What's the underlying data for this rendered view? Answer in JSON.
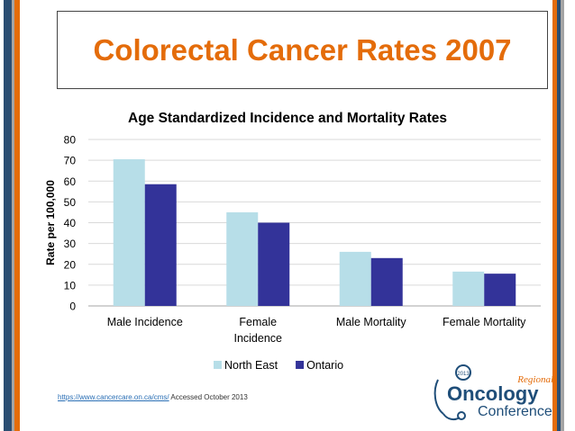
{
  "slide": {
    "title": "Colorectal Cancer Rates 2007",
    "colors": {
      "title": "#e46c0a",
      "stripe_blue": "#2b4e72",
      "stripe_orange": "#e46c0a",
      "stripe_gray": "#a5a5a5"
    }
  },
  "chart_data": {
    "type": "bar",
    "title": "Age Standardized Incidence and Mortality Rates",
    "xlabel": "",
    "ylabel": "Rate per 100,000",
    "categories": [
      "Male Incidence",
      "Female Incidence",
      "Male Mortality",
      "Female Mortality"
    ],
    "category_lines": [
      [
        "Male Incidence"
      ],
      [
        "Female",
        "Incidence"
      ],
      [
        "Male Mortality"
      ],
      [
        "Female Mortality"
      ]
    ],
    "series": [
      {
        "name": "North East",
        "values": [
          70.5,
          45,
          26,
          16.5
        ],
        "color": "#b7dee8"
      },
      {
        "name": "Ontario",
        "values": [
          58.5,
          40,
          23,
          15.5
        ],
        "color": "#333399"
      }
    ],
    "ylim": [
      0,
      80
    ],
    "yticks": [
      "0",
      "10",
      "20",
      "30",
      "40",
      "50",
      "60",
      "70",
      "80"
    ],
    "grid": true,
    "legend": "bottom"
  },
  "footer": {
    "source_link": "https://www.cancercare.on.ca/cms/",
    "source_note": " Accessed October 2013"
  },
  "logo": {
    "top": "Regional",
    "main": "Oncology",
    "bottom": "Conference",
    "badge": "2013"
  }
}
